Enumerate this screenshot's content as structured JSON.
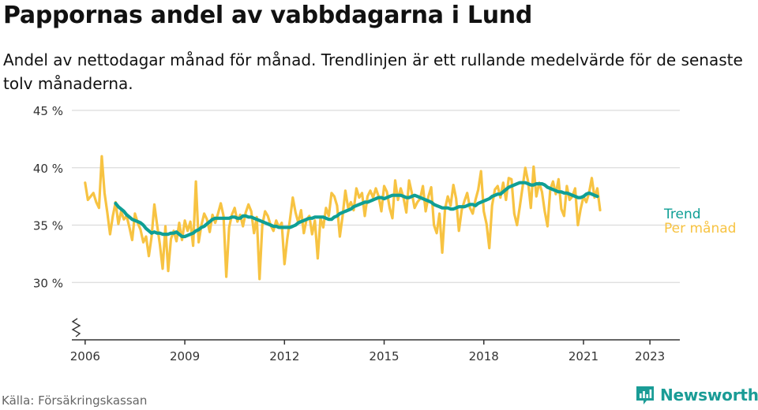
{
  "title": "Pappornas andel av vabbdagarna i Lund",
  "subtitle": "Andel av nettodagar månad för månad. Trendlinjen är ett rullande medelvärde för de senaste tolv månaderna.",
  "source": "Källa: Försäkringskassan",
  "brand": "Newsworthy",
  "colors": {
    "monthly": "#f7c342",
    "trend": "#0f9f95",
    "grid": "#dcdcdc",
    "axis": "#333333",
    "brand": "#1a9c96"
  },
  "chart_data": {
    "type": "line",
    "x_unit": "year",
    "xlim": [
      2005.6,
      2023.9
    ],
    "ylim": [
      25,
      45
    ],
    "yticks": [
      30,
      35,
      40,
      45
    ],
    "ytick_labels": [
      "30 %",
      "35 %",
      "40 %",
      "45 %"
    ],
    "xticks": [
      2006,
      2009,
      2012,
      2015,
      2018,
      2021,
      2023
    ],
    "xtick_labels": [
      "2006",
      "2009",
      "2012",
      "2015",
      "2018",
      "2021",
      "2023"
    ],
    "axis_break": true,
    "grid": true,
    "legend": "right, at line ends",
    "series": [
      {
        "name": "Per månad",
        "x_start": 2006.0,
        "step": 0.08333,
        "values": [
          38.7,
          37.2,
          37.5,
          37.8,
          37.0,
          36.5,
          41.0,
          37.8,
          36.1,
          34.2,
          35.8,
          37.0,
          35.1,
          36.2,
          35.5,
          35.8,
          34.8,
          33.7,
          36.0,
          35.2,
          34.6,
          33.5,
          34.0,
          32.3,
          34.0,
          36.8,
          35.0,
          33.3,
          31.2,
          34.9,
          31.0,
          33.8,
          34.5,
          33.6,
          35.2,
          33.7,
          35.4,
          34.5,
          35.3,
          33.2,
          38.8,
          33.5,
          35.0,
          36.0,
          35.5,
          34.4,
          35.9,
          35.2,
          36.0,
          36.9,
          35.8,
          30.5,
          34.8,
          35.9,
          36.5,
          35.3,
          35.9,
          34.9,
          36.1,
          36.8,
          36.2,
          34.3,
          35.7,
          30.3,
          35.0,
          36.2,
          35.8,
          35.0,
          34.5,
          35.4,
          34.8,
          35.2,
          31.6,
          33.8,
          35.5,
          37.4,
          36.1,
          35.2,
          36.3,
          34.3,
          35.5,
          35.8,
          34.2,
          35.4,
          32.1,
          35.6,
          34.8,
          36.5,
          35.8,
          37.8,
          37.5,
          36.7,
          34.0,
          35.8,
          38.0,
          36.5,
          37.0,
          36.3,
          38.2,
          37.4,
          37.8,
          35.8,
          37.5,
          38.0,
          37.4,
          38.2,
          37.5,
          36.2,
          38.4,
          37.9,
          36.5,
          35.6,
          38.9,
          37.2,
          38.2,
          37.4,
          36.1,
          38.9,
          37.8,
          36.5,
          37.0,
          37.3,
          38.4,
          36.2,
          37.5,
          38.3,
          35.0,
          34.3,
          36.0,
          32.6,
          36.4,
          37.5,
          36.7,
          38.5,
          37.3,
          34.5,
          36.3,
          37.1,
          37.8,
          36.5,
          36.0,
          37.2,
          38.1,
          39.7,
          36.2,
          35.1,
          33.0,
          36.7,
          38.1,
          38.4,
          37.4,
          38.7,
          37.2,
          39.1,
          39.0,
          36.0,
          35.0,
          36.6,
          38.3,
          40.0,
          38.8,
          36.5,
          40.1,
          37.5,
          38.7,
          37.9,
          36.2,
          34.9,
          38.1,
          38.8,
          37.7,
          39.0,
          36.4,
          35.8,
          38.4,
          37.2,
          37.5,
          38.2,
          35.0,
          36.4,
          37.5,
          37.0,
          37.8,
          39.1,
          37.4,
          38.2,
          36.3
        ]
      },
      {
        "name": "Trend",
        "x_start": 2006.9167,
        "step": 0.08333,
        "values": [
          36.9,
          36.6,
          36.4,
          36.2,
          35.9,
          35.7,
          35.5,
          35.4,
          35.3,
          35.2,
          35.0,
          34.7,
          34.5,
          34.3,
          34.4,
          34.3,
          34.3,
          34.2,
          34.2,
          34.2,
          34.3,
          34.3,
          34.4,
          34.2,
          34.0,
          34.0,
          34.1,
          34.2,
          34.3,
          34.5,
          34.6,
          34.8,
          34.9,
          35.1,
          35.3,
          35.5,
          35.6,
          35.6,
          35.6,
          35.6,
          35.6,
          35.6,
          35.7,
          35.7,
          35.6,
          35.6,
          35.8,
          35.8,
          35.7,
          35.7,
          35.6,
          35.5,
          35.4,
          35.3,
          35.2,
          35.1,
          35.0,
          34.9,
          34.9,
          34.8,
          34.8,
          34.8,
          34.8,
          34.8,
          34.9,
          35.0,
          35.2,
          35.3,
          35.4,
          35.5,
          35.6,
          35.6,
          35.7,
          35.7,
          35.7,
          35.7,
          35.6,
          35.5,
          35.5,
          35.7,
          35.8,
          36.0,
          36.1,
          36.2,
          36.3,
          36.4,
          36.6,
          36.7,
          36.8,
          36.9,
          37.0,
          37.0,
          37.1,
          37.2,
          37.3,
          37.4,
          37.4,
          37.3,
          37.4,
          37.5,
          37.6,
          37.6,
          37.6,
          37.6,
          37.5,
          37.4,
          37.4,
          37.5,
          37.6,
          37.5,
          37.4,
          37.3,
          37.2,
          37.1,
          37.0,
          36.8,
          36.7,
          36.6,
          36.5,
          36.5,
          36.5,
          36.4,
          36.4,
          36.5,
          36.6,
          36.6,
          36.6,
          36.7,
          36.8,
          36.8,
          36.7,
          36.9,
          37.0,
          37.1,
          37.2,
          37.3,
          37.5,
          37.6,
          37.7,
          37.7,
          37.9,
          38.1,
          38.3,
          38.4,
          38.5,
          38.6,
          38.7,
          38.7,
          38.7,
          38.6,
          38.5,
          38.5,
          38.6,
          38.6,
          38.6,
          38.5,
          38.3,
          38.2,
          38.1,
          38.0,
          37.9,
          37.9,
          37.8,
          37.8,
          37.7,
          37.6,
          37.5,
          37.4,
          37.4,
          37.5,
          37.7,
          37.8,
          37.7,
          37.6,
          37.5
        ]
      }
    ]
  }
}
